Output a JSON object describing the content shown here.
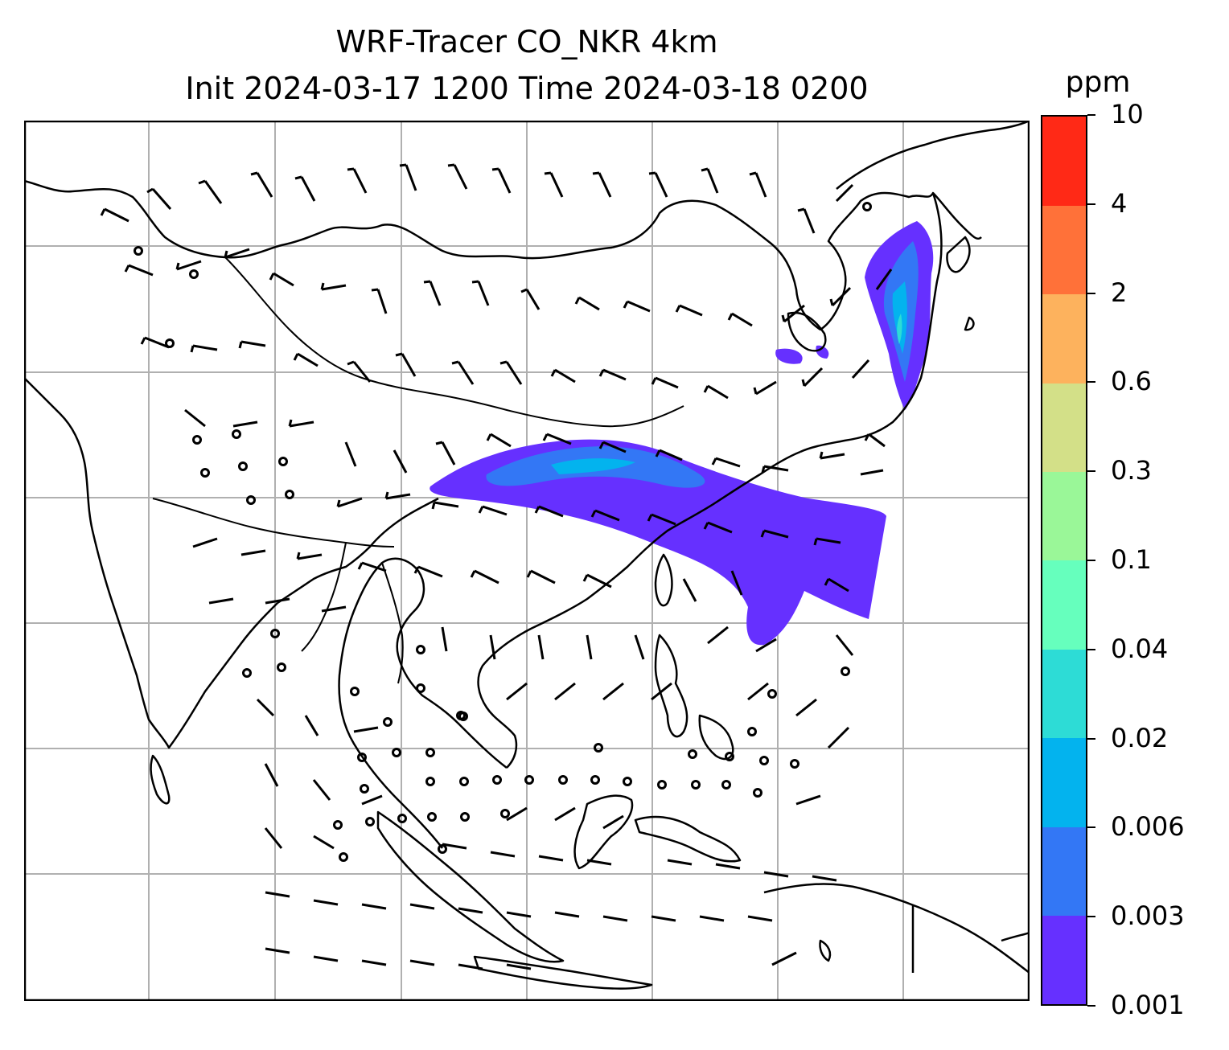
{
  "title": {
    "line1": "WRF-Tracer CO_NKR 4km",
    "line2": "Init 2024-03-17 1200 Time 2024-03-18 0200"
  },
  "colorbar": {
    "units": "ppm",
    "levels": [
      "0.001",
      "0.003",
      "0.006",
      "0.02",
      "0.04",
      "0.1",
      "0.3",
      "0.6",
      "2",
      "4",
      "10"
    ],
    "colors": [
      "#6630ff",
      "#3377f5",
      "#03b3ee",
      "#2ddcd6",
      "#66ffbd",
      "#9af798",
      "#d3e088",
      "#fdb25d",
      "#ff7139",
      "#ff2916"
    ]
  },
  "map": {
    "projection": "regional lat-lon grid",
    "gridlines": true,
    "field": "CO_NKR tracer concentration with wind barbs",
    "plume_colors": {
      "edge": "#6630ff",
      "inner": "#3377f5",
      "core": "#03b3ee",
      "peak": "#2ddcd6"
    },
    "wind_barb_color": "#000000",
    "coastline_color": "#000000",
    "grid_color": "#b0b0b0"
  }
}
